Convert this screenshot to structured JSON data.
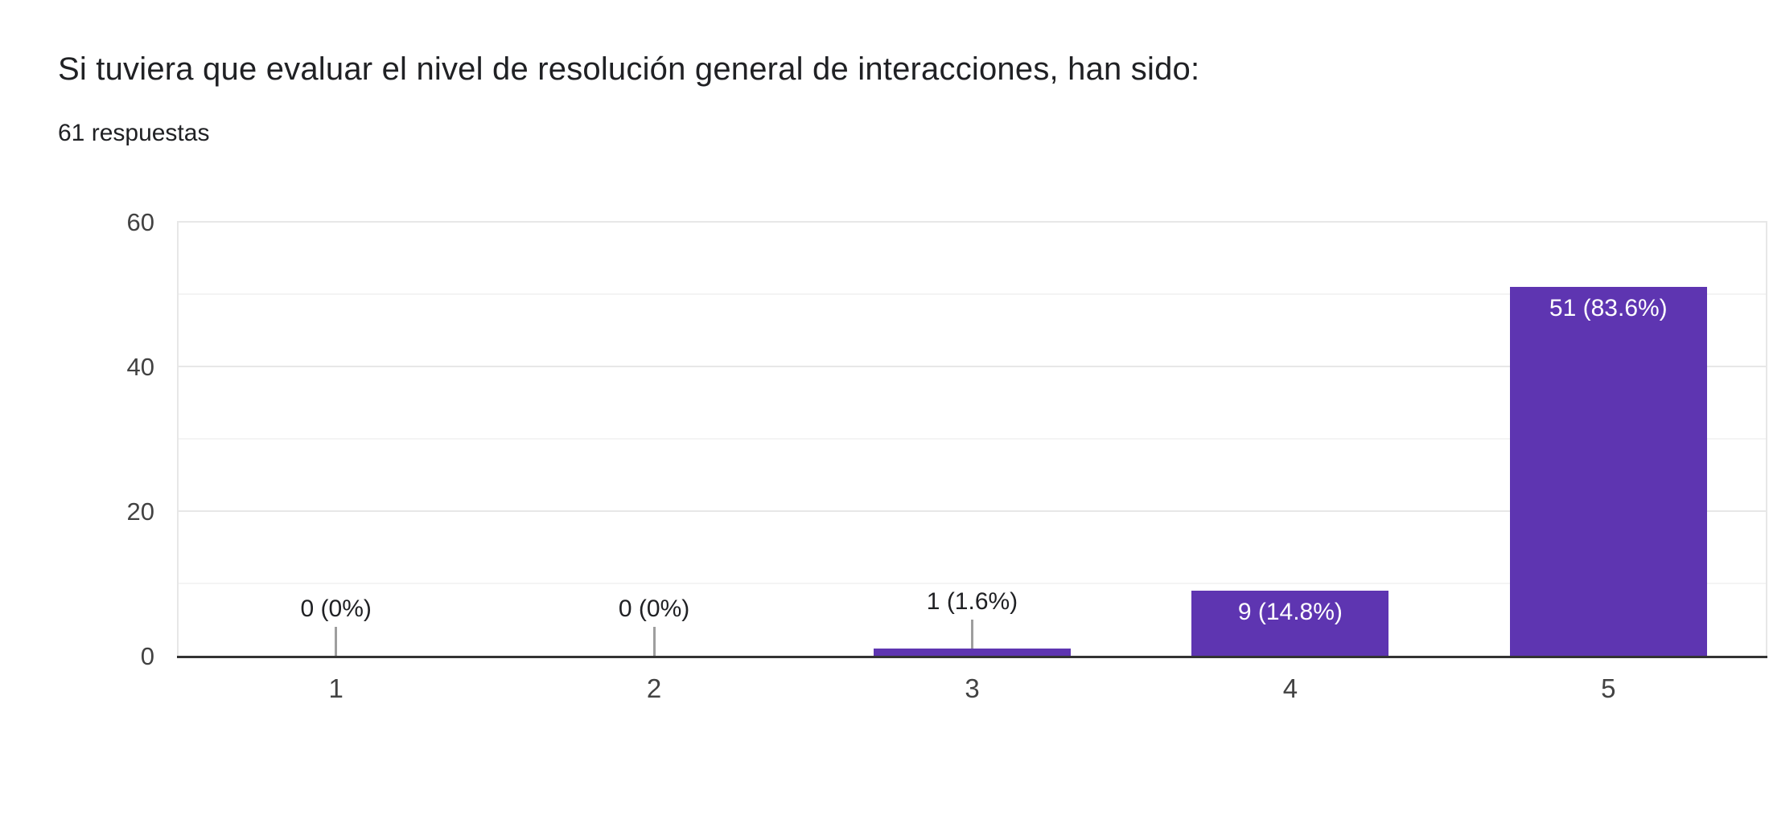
{
  "chart_data": {
    "type": "bar",
    "title": "Si tuviera que evaluar el nivel de resolución general de interacciones, han sido:",
    "subtitle": "61 respuestas",
    "categories": [
      "1",
      "2",
      "3",
      "4",
      "5"
    ],
    "values": [
      0,
      0,
      1,
      9,
      51
    ],
    "bar_labels": [
      "0 (0%)",
      "0 (0%)",
      "1 (1.6%)",
      "9 (14.8%)",
      "51 (83.6%)"
    ],
    "xlabel": "",
    "ylabel": "",
    "ylim": [
      0,
      60
    ],
    "yticks": [
      0,
      20,
      40,
      60
    ],
    "minor_grid_step": 10,
    "grid": "on",
    "legend": "none",
    "colors": {
      "bar": "#5e35b1",
      "label_inside": "#ffffff",
      "label_outside": "#202124",
      "axis_text": "#424242",
      "title_text": "#202124",
      "grid_major": "#e7e7e7",
      "grid_minor": "#f4f4f4",
      "baseline": "#333333",
      "stem": "#9e9e9e",
      "background": "#ffffff"
    }
  }
}
